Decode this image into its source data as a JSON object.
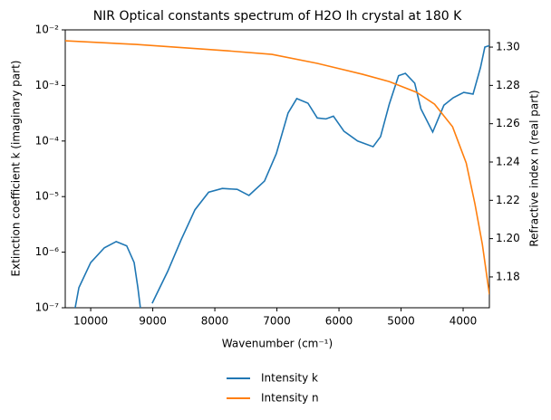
{
  "chart_data": {
    "type": "line",
    "title": "NIR Optical constants spectrum of H2O Ih crystal at 180 K",
    "x_label": "Wavenumber (cm⁻¹)",
    "y_label": "Extinction coefficient k (imaginary part)",
    "y2_label": "Refractive index n (real part)",
    "yscale": "log",
    "xlim": [
      10410,
      3577
    ],
    "xticks": [
      10000,
      9000,
      8000,
      7000,
      6000,
      5000,
      4000
    ],
    "ylim": [
      1e-07,
      0.01
    ],
    "yticks": [
      {
        "value": 1e-07,
        "label": "10⁻⁷"
      },
      {
        "value": 1e-06,
        "label": "10⁻⁶"
      },
      {
        "value": 1e-05,
        "label": "10⁻⁵"
      },
      {
        "value": 0.0001,
        "label": "10⁻⁴"
      },
      {
        "value": 0.001,
        "label": "10⁻³"
      },
      {
        "value": 0.01,
        "label": "10⁻²"
      }
    ],
    "y2lim": [
      1.1639,
      1.309
    ],
    "y2ticks": [
      1.18,
      {
        "value": 1.2,
        "label": "1.20"
      },
      1.22,
      1.24,
      1.26,
      1.28,
      {
        "value": 1.3,
        "label": "1.30"
      }
    ],
    "legend": "below",
    "series": [
      {
        "name": "Intensity k",
        "color": "#1f77b4",
        "x": [
          10250,
          10190,
          10000,
          9780,
          9590,
          9420,
          9300,
          9240,
          9200,
          null,
          9010,
          8760,
          8540,
          8320,
          8100,
          7880,
          7640,
          7450,
          7200,
          7010,
          6820,
          6680,
          6500,
          6350,
          6210,
          6090,
          5920,
          5700,
          5450,
          5330,
          5190,
          5040,
          4930,
          4780,
          4680,
          4490,
          4310,
          4160,
          3990,
          3840,
          3720,
          3650,
          3577
        ],
        "values": [
          1e-07,
          2.3e-07,
          6.5e-07,
          1.2e-06,
          1.55e-06,
          1.3e-06,
          6.5e-07,
          2.3e-07,
          1e-07,
          null,
          1.2e-07,
          4.5e-07,
          1.7e-06,
          5.8e-06,
          1.2e-05,
          1.4e-05,
          1.35e-05,
          1.05e-05,
          1.9e-05,
          5.9e-05,
          0.00032,
          0.00058,
          0.00048,
          0.00026,
          0.00025,
          0.00028,
          0.00015,
          0.0001,
          7.9e-05,
          0.00012,
          0.00046,
          0.0015,
          0.00165,
          0.0011,
          0.00038,
          0.000145,
          0.00044,
          0.0006,
          0.00075,
          0.0007,
          0.0021,
          0.0049,
          0.0052
        ]
      },
      {
        "name": "Intensity n",
        "color": "#ff7f0e",
        "axis": "y2",
        "x": [
          10410,
          9270,
          7810,
          7080,
          6350,
          5620,
          5190,
          4750,
          4460,
          4170,
          3950,
          3810,
          3690,
          3577
        ],
        "values": [
          1.3033,
          1.3014,
          1.2981,
          1.2962,
          1.2915,
          1.2858,
          1.282,
          1.2764,
          1.2702,
          1.2584,
          1.2395,
          1.2182,
          1.197,
          1.1709
        ]
      }
    ]
  }
}
